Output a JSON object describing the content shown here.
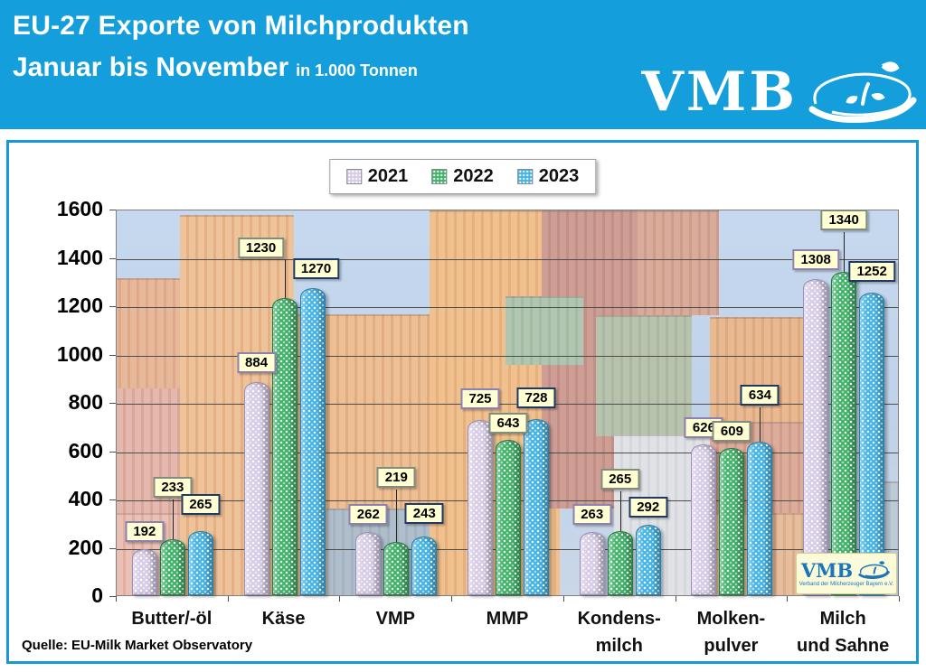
{
  "header": {
    "title_line1": "EU-27 Exporte von Milchprodukten",
    "title_line2": "Januar bis November",
    "title_suffix": "in 1.000 Tonnen",
    "logo_text": "VMB"
  },
  "chart_data": {
    "type": "bar",
    "title": "EU-27 Exporte von Milchprodukten Januar bis November in 1.000 Tonnen",
    "categories": [
      "Butter/-öl",
      "Käse",
      "VMP",
      "MMP",
      "Kondens-milch",
      "Molken-pulver",
      "Milch und Sahne"
    ],
    "category_lines": [
      [
        "Butter/-öl"
      ],
      [
        "Käse"
      ],
      [
        "VMP"
      ],
      [
        "MMP"
      ],
      [
        "Kondens-",
        "milch"
      ],
      [
        "Molken-",
        "pulver"
      ],
      [
        "Milch",
        "und Sahne"
      ]
    ],
    "series": [
      {
        "name": "2021",
        "values": [
          192,
          884,
          262,
          725,
          263,
          626,
          1308
        ],
        "bar_color": "#d7cce6",
        "border_color": "#9a8cbc",
        "label_border": "#8e80b0"
      },
      {
        "name": "2022",
        "values": [
          233,
          1230,
          219,
          643,
          265,
          609,
          1340
        ],
        "bar_color": "#41b269",
        "border_color": "#1e7a42",
        "label_border": "#7f8c7f"
      },
      {
        "name": "2023",
        "values": [
          265,
          1270,
          243,
          728,
          292,
          634,
          1252
        ],
        "bar_color": "#44b4e6",
        "border_color": "#1f7fae",
        "label_border": "#1f3864"
      }
    ],
    "ylabel": "",
    "xlabel": "",
    "ylim": [
      0,
      1600
    ],
    "ytick_step": 200,
    "grid": true,
    "legend_position": "top-center",
    "label_background": "#ffffd2"
  },
  "footer": {
    "source": "Quelle: EU-Milk Market Observatory"
  },
  "watermark": {
    "text": "VMB",
    "subtext": "Verband der Milcherzeuger Bayern e.V."
  },
  "colors": {
    "header_background": "#149fdc",
    "frame_border": "#1799d6",
    "gridline": "#4d4d4d",
    "plot_border": "#7f7f7f"
  }
}
